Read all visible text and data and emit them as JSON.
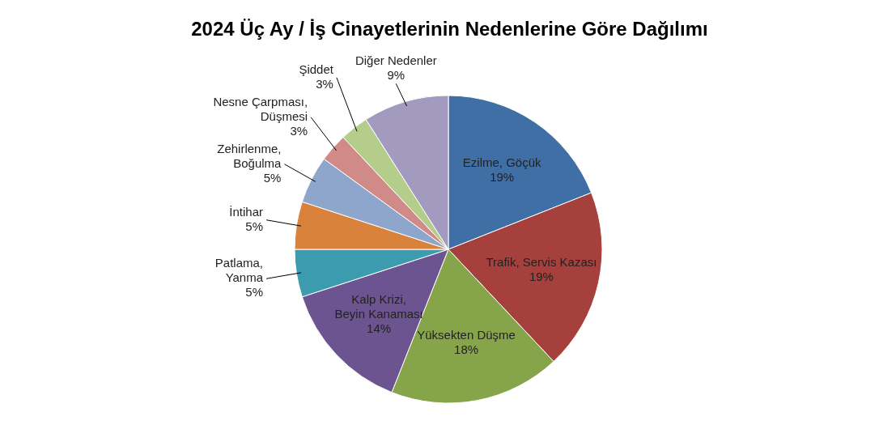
{
  "chart_data": {
    "type": "pie",
    "title": "2024 Üç Ay / İş Cinayetlerinin Nedenlerine Göre Dağılımı",
    "categories": [
      "Ezilme, Göçük",
      "Trafik, Servis Kazası",
      "Yüksekten Düşme",
      "Kalp Krizi, Beyin Kanaması",
      "Patlama, Yanma",
      "İntihar",
      "Zehirlenme, Boğulma",
      "Nesne Çarpması, Düşmesi",
      "Şiddet",
      "Diğer Nedenler"
    ],
    "values": [
      19,
      19,
      18,
      14,
      5,
      5,
      5,
      3,
      3,
      9
    ],
    "colors": [
      "#3f6fa4",
      "#a5403d",
      "#86a44a",
      "#6c5490",
      "#3d9bb0",
      "#d9823b",
      "#8ea5cc",
      "#d08a87",
      "#b5cd8a",
      "#a29bbf"
    ],
    "value_labels": [
      "19%",
      "19%",
      "18%",
      "14%",
      "5%",
      "5%",
      "5%",
      "3%",
      "3%",
      "9%"
    ]
  }
}
